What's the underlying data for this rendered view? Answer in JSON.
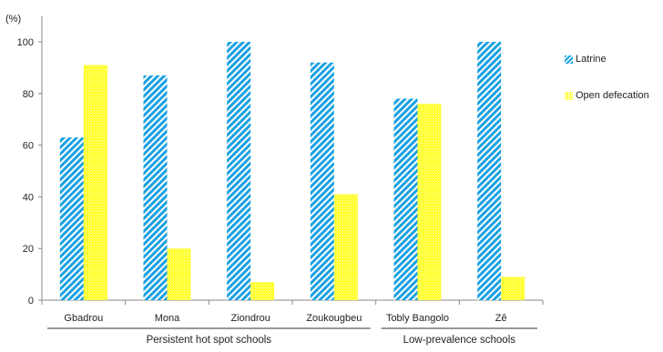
{
  "chart_data": {
    "type": "bar",
    "ylabel": "(%)",
    "ylim": [
      0,
      100
    ],
    "yticks": [
      0,
      20,
      40,
      60,
      80,
      100
    ],
    "categories": [
      "Gbadrou",
      "Mona",
      "Ziondrou",
      "Zoukougbeu",
      "Tobly Bangolo",
      "Zê"
    ],
    "series": [
      {
        "name": "Latrine",
        "values": [
          63,
          87,
          100,
          92,
          78,
          100
        ]
      },
      {
        "name": "Open defecation",
        "values": [
          91,
          20,
          7,
          41,
          76,
          9
        ]
      }
    ],
    "groups": [
      {
        "label": "Persistent hot spot schools",
        "categories": [
          "Gbadrou",
          "Mona",
          "Ziondrou",
          "Zoukougbeu"
        ]
      },
      {
        "label": "Low-prevalence schools",
        "categories": [
          "Tobly Bangolo",
          "Zê"
        ]
      }
    ],
    "legend_position": "right",
    "grid": false
  },
  "colors": {
    "latrine": "#1ba1e2",
    "open_defecation": "#ffff33",
    "axis": "#888888"
  }
}
